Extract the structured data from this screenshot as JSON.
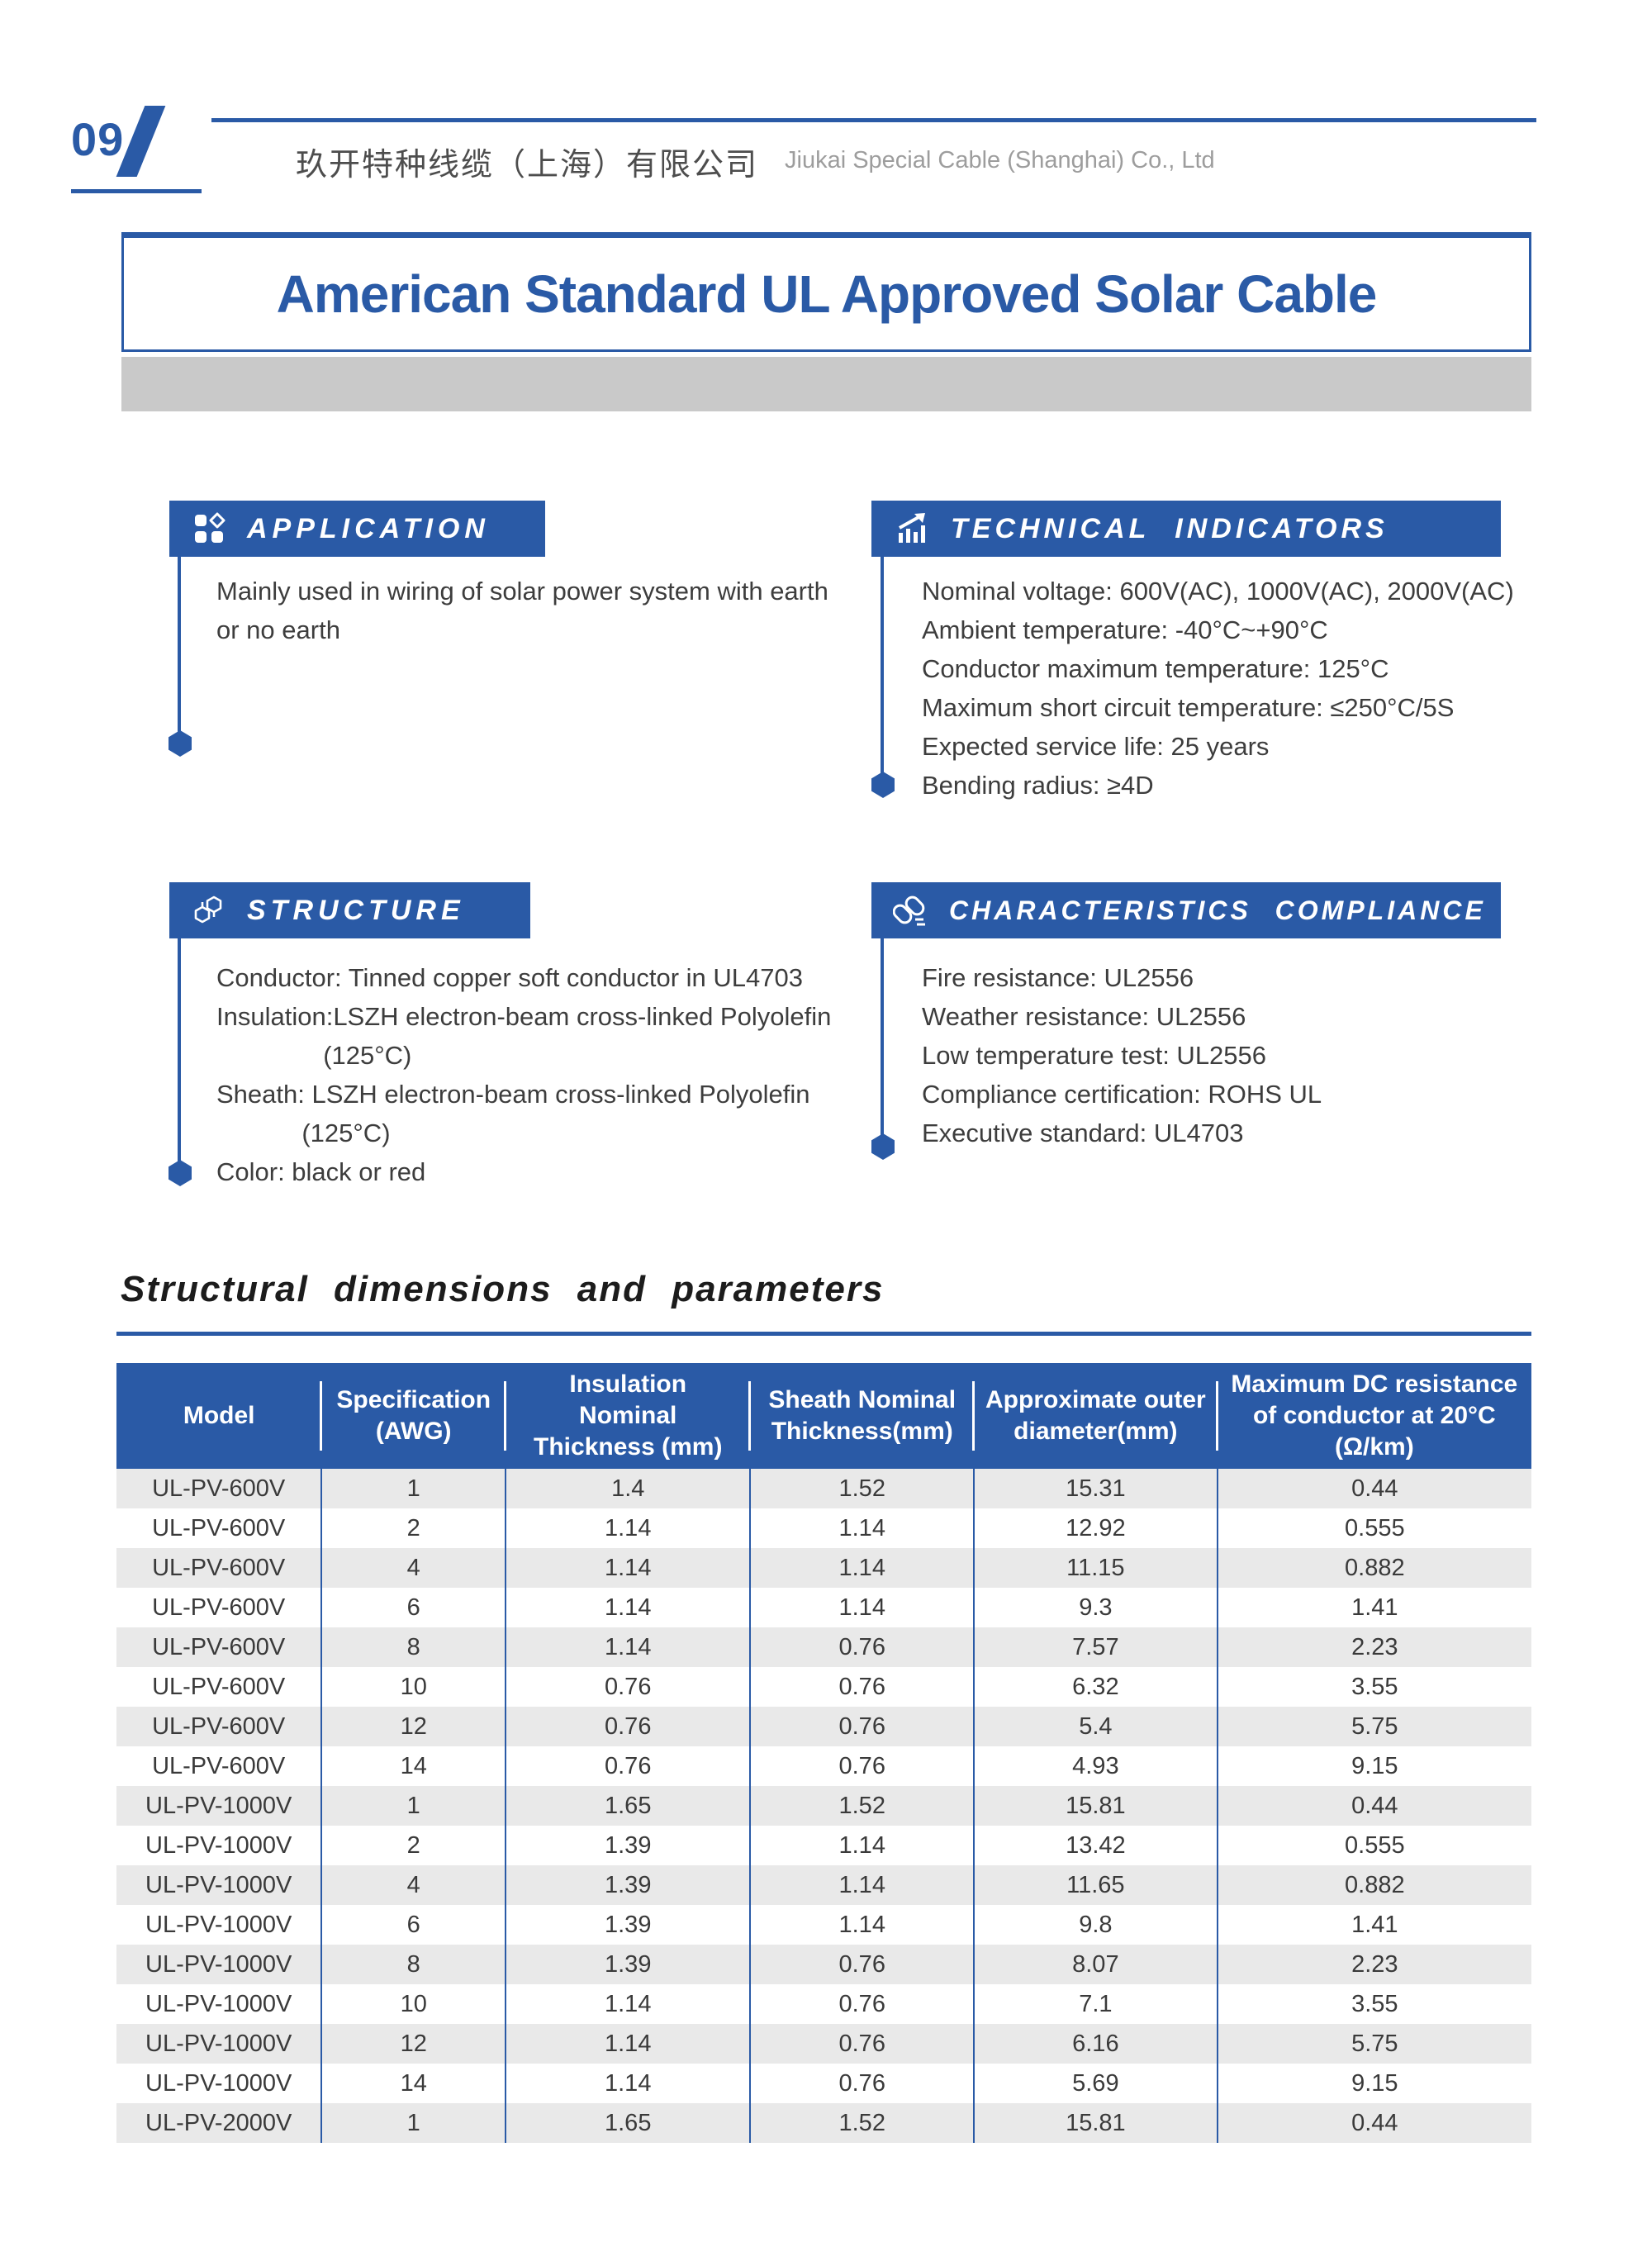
{
  "page": {
    "number": "09",
    "company_cn": "玖开特种线缆（上海）有限公司",
    "company_en": "Jiukai Special Cable (Shanghai) Co., Ltd",
    "title": "American Standard UL Approved Solar Cable"
  },
  "sections": {
    "application": {
      "title": "APPLICATION",
      "icon": "grid-icon",
      "lines": [
        "Mainly used in wiring of solar power system with earth",
        "or no earth"
      ]
    },
    "technical": {
      "title": "TECHNICAL INDICATORS",
      "icon": "trend-chart-icon",
      "lines": [
        "Nominal voltage: 600V(AC), 1000V(AC), 2000V(AC)",
        "Ambient temperature: -40°C~+90°C",
        "Conductor maximum temperature: 125°C",
        "Maximum short circuit temperature: ≤250°C/5S",
        "Expected service life: 25 years",
        "Bending radius: ≥4D"
      ]
    },
    "structure": {
      "title": "STRUCTURE",
      "icon": "molecule-icon",
      "lines": [
        "Conductor: Tinned copper soft conductor in UL4703",
        "Insulation:LSZH electron-beam cross-linked Polyolefin",
        "               (125°C)",
        "Sheath: LSZH electron-beam cross-linked Polyolefin",
        "            (125°C)",
        "Color: black or red"
      ]
    },
    "compliance": {
      "title": "CHARACTERISTICS COMPLIANCE",
      "icon": "chain-link-icon",
      "lines": [
        "Fire resistance: UL2556",
        "Weather resistance: UL2556",
        "Low temperature test: UL2556",
        "Compliance certification: ROHS UL",
        "Executive standard: UL4703"
      ]
    }
  },
  "table": {
    "heading": "Structural dimensions and parameters",
    "columns": [
      "Model",
      "Specification\n(AWG)",
      "Insulation\nNominal\nThickness (mm)",
      "Sheath Nominal\nThickness(mm)",
      "Approximate outer\ndiameter(mm)",
      "Maximum DC resistance\nof conductor at 20°C\n(Ω/km)"
    ],
    "rows": [
      [
        "UL-PV-600V",
        "1",
        "1.4",
        "1.52",
        "15.31",
        "0.44"
      ],
      [
        "UL-PV-600V",
        "2",
        "1.14",
        "1.14",
        "12.92",
        "0.555"
      ],
      [
        "UL-PV-600V",
        "4",
        "1.14",
        "1.14",
        "11.15",
        "0.882"
      ],
      [
        "UL-PV-600V",
        "6",
        "1.14",
        "1.14",
        "9.3",
        "1.41"
      ],
      [
        "UL-PV-600V",
        "8",
        "1.14",
        "0.76",
        "7.57",
        "2.23"
      ],
      [
        "UL-PV-600V",
        "10",
        "0.76",
        "0.76",
        "6.32",
        "3.55"
      ],
      [
        "UL-PV-600V",
        "12",
        "0.76",
        "0.76",
        "5.4",
        "5.75"
      ],
      [
        "UL-PV-600V",
        "14",
        "0.76",
        "0.76",
        "4.93",
        "9.15"
      ],
      [
        "UL-PV-1000V",
        "1",
        "1.65",
        "1.52",
        "15.81",
        "0.44"
      ],
      [
        "UL-PV-1000V",
        "2",
        "1.39",
        "1.14",
        "13.42",
        "0.555"
      ],
      [
        "UL-PV-1000V",
        "4",
        "1.39",
        "1.14",
        "11.65",
        "0.882"
      ],
      [
        "UL-PV-1000V",
        "6",
        "1.39",
        "1.14",
        "9.8",
        "1.41"
      ],
      [
        "UL-PV-1000V",
        "8",
        "1.39",
        "0.76",
        "8.07",
        "2.23"
      ],
      [
        "UL-PV-1000V",
        "10",
        "1.14",
        "0.76",
        "7.1",
        "3.55"
      ],
      [
        "UL-PV-1000V",
        "12",
        "1.14",
        "0.76",
        "6.16",
        "5.75"
      ],
      [
        "UL-PV-1000V",
        "14",
        "1.14",
        "0.76",
        "5.69",
        "9.15"
      ],
      [
        "UL-PV-2000V",
        "1",
        "1.65",
        "1.52",
        "15.81",
        "0.44"
      ]
    ]
  },
  "colors": {
    "accent": "#2a5aa6",
    "stripe": "#e9e9e9",
    "graybar": "#c9c9c9"
  }
}
